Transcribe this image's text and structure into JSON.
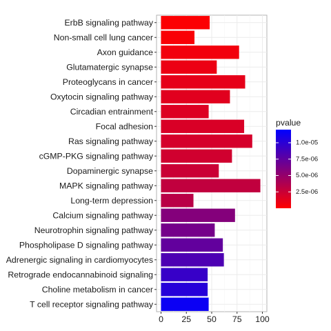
{
  "chart_data": {
    "type": "bar",
    "orientation": "horizontal",
    "categories": [
      "ErbB signaling pathway",
      "Non-small cell lung cancer",
      "Axon guidance",
      "Glutamatergic synapse",
      "Proteoglycans in cancer",
      "Oxytocin signaling pathway",
      "Circadian entrainment",
      "Focal adhesion",
      "Ras signaling pathway",
      "cGMP-PKG signaling pathway",
      "Dopaminergic synapse",
      "MAPK signaling pathway",
      "Long-term depression",
      "Calcium signaling pathway",
      "Neurotrophin signaling pathway",
      "Phospholipase D signaling pathway",
      "Adrenergic signaling in cardiomyocytes",
      "Retrograde endocannabinoid signaling",
      "Choline metabolism in cancer",
      "T cell receptor signaling pathway"
    ],
    "values": [
      48,
      33,
      77,
      55,
      83,
      68,
      47,
      82,
      90,
      70,
      57,
      98,
      32,
      73,
      53,
      61,
      62,
      46,
      46,
      47
    ],
    "pvalue": [
      1.2e-07,
      3e-07,
      6e-07,
      9e-07,
      1.2e-06,
      1.4e-06,
      1.6e-06,
      1.8e-06,
      2e-06,
      2.2e-06,
      2.5e-06,
      2.9e-06,
      3.3e-06,
      5.8e-06,
      6.5e-06,
      7.4e-06,
      8.4e-06,
      9.4e-06,
      1.02e-05,
      1.15e-05
    ],
    "xlim": [
      0,
      100
    ],
    "xticks": [
      0,
      25,
      50,
      75,
      100
    ],
    "xtick_labels": [
      "0",
      "25",
      "50",
      "75",
      "100"
    ],
    "grid": true,
    "title": "",
    "xlabel": "",
    "ylabel": "",
    "legend": {
      "title": "pvalue",
      "placement": "right",
      "color_low": "#FF0000",
      "color_high": "#0000FF",
      "range": [
        0,
        1.2e-05
      ],
      "ticks": [
        2.5e-06,
        5e-06,
        7.5e-06,
        1e-05
      ],
      "tick_labels": [
        "2.5e-06",
        "5.0e-06",
        "7.5e-06",
        "1.0e-05"
      ]
    }
  }
}
